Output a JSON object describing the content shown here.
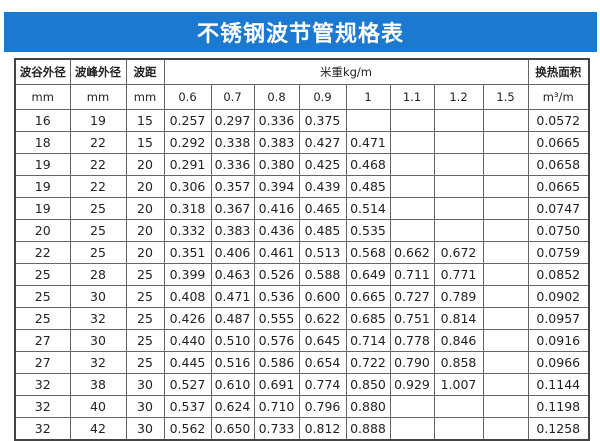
{
  "title": "不锈钢波节管规格表",
  "colors": {
    "banner": "#1b79d1",
    "banner_text": "#ffffff"
  },
  "table": {
    "headers": {
      "valley_od": "波谷外径",
      "valley_od_unit": "mm",
      "peak_od": "波峰外径",
      "peak_od_unit": "mm",
      "pitch": "波距",
      "pitch_unit": "mm",
      "weight": "米重kg/m",
      "thickness": [
        "0.6",
        "0.7",
        "0.8",
        "0.9",
        "1",
        "1.1",
        "1.2",
        "1.5"
      ],
      "area": "换热面积",
      "area_unit": "m³/m"
    },
    "rows": [
      [
        "16",
        "19",
        "15",
        "0.257",
        "0.297",
        "0.336",
        "0.375",
        "",
        "",
        "",
        "",
        "0.0572"
      ],
      [
        "18",
        "22",
        "15",
        "0.292",
        "0.338",
        "0.383",
        "0.427",
        "0.471",
        "",
        "",
        "",
        "0.0665"
      ],
      [
        "19",
        "22",
        "20",
        "0.291",
        "0.336",
        "0.380",
        "0.425",
        "0.468",
        "",
        "",
        "",
        "0.0658"
      ],
      [
        "19",
        "22",
        "20",
        "0.306",
        "0.357",
        "0.394",
        "0.439",
        "0.485",
        "",
        "",
        "",
        "0.0665"
      ],
      [
        "19",
        "25",
        "20",
        "0.318",
        "0.367",
        "0.416",
        "0.465",
        "0.514",
        "",
        "",
        "",
        "0.0747"
      ],
      [
        "20",
        "25",
        "20",
        "0.332",
        "0.383",
        "0.436",
        "0.485",
        "0.535",
        "",
        "",
        "",
        "0.0750"
      ],
      [
        "22",
        "25",
        "20",
        "0.351",
        "0.406",
        "0.461",
        "0.513",
        "0.568",
        "0.662",
        "0.672",
        "",
        "0.0759"
      ],
      [
        "25",
        "28",
        "25",
        "0.399",
        "0.463",
        "0.526",
        "0.588",
        "0.649",
        "0.711",
        "0.771",
        "",
        "0.0852"
      ],
      [
        "25",
        "30",
        "25",
        "0.408",
        "0.471",
        "0.536",
        "0.600",
        "0.665",
        "0.727",
        "0.789",
        "",
        "0.0902"
      ],
      [
        "25",
        "32",
        "25",
        "0.426",
        "0.487",
        "0.555",
        "0.622",
        "0.685",
        "0.751",
        "0.814",
        "",
        "0.0957"
      ],
      [
        "27",
        "30",
        "25",
        "0.440",
        "0.510",
        "0.576",
        "0.645",
        "0.714",
        "0.778",
        "0.846",
        "",
        "0.0916"
      ],
      [
        "27",
        "32",
        "25",
        "0.445",
        "0.516",
        "0.586",
        "0.654",
        "0.722",
        "0.790",
        "0.858",
        "",
        "0.0966"
      ],
      [
        "32",
        "38",
        "30",
        "0.527",
        "0.610",
        "0.691",
        "0.774",
        "0.850",
        "0.929",
        "1.007",
        "",
        "0.1144"
      ],
      [
        "32",
        "40",
        "30",
        "0.537",
        "0.624",
        "0.710",
        "0.796",
        "0.880",
        "",
        "",
        "",
        "0.1198"
      ],
      [
        "32",
        "42",
        "30",
        "0.562",
        "0.650",
        "0.733",
        "0.812",
        "0.888",
        "",
        "",
        "",
        "0.1258"
      ]
    ]
  }
}
